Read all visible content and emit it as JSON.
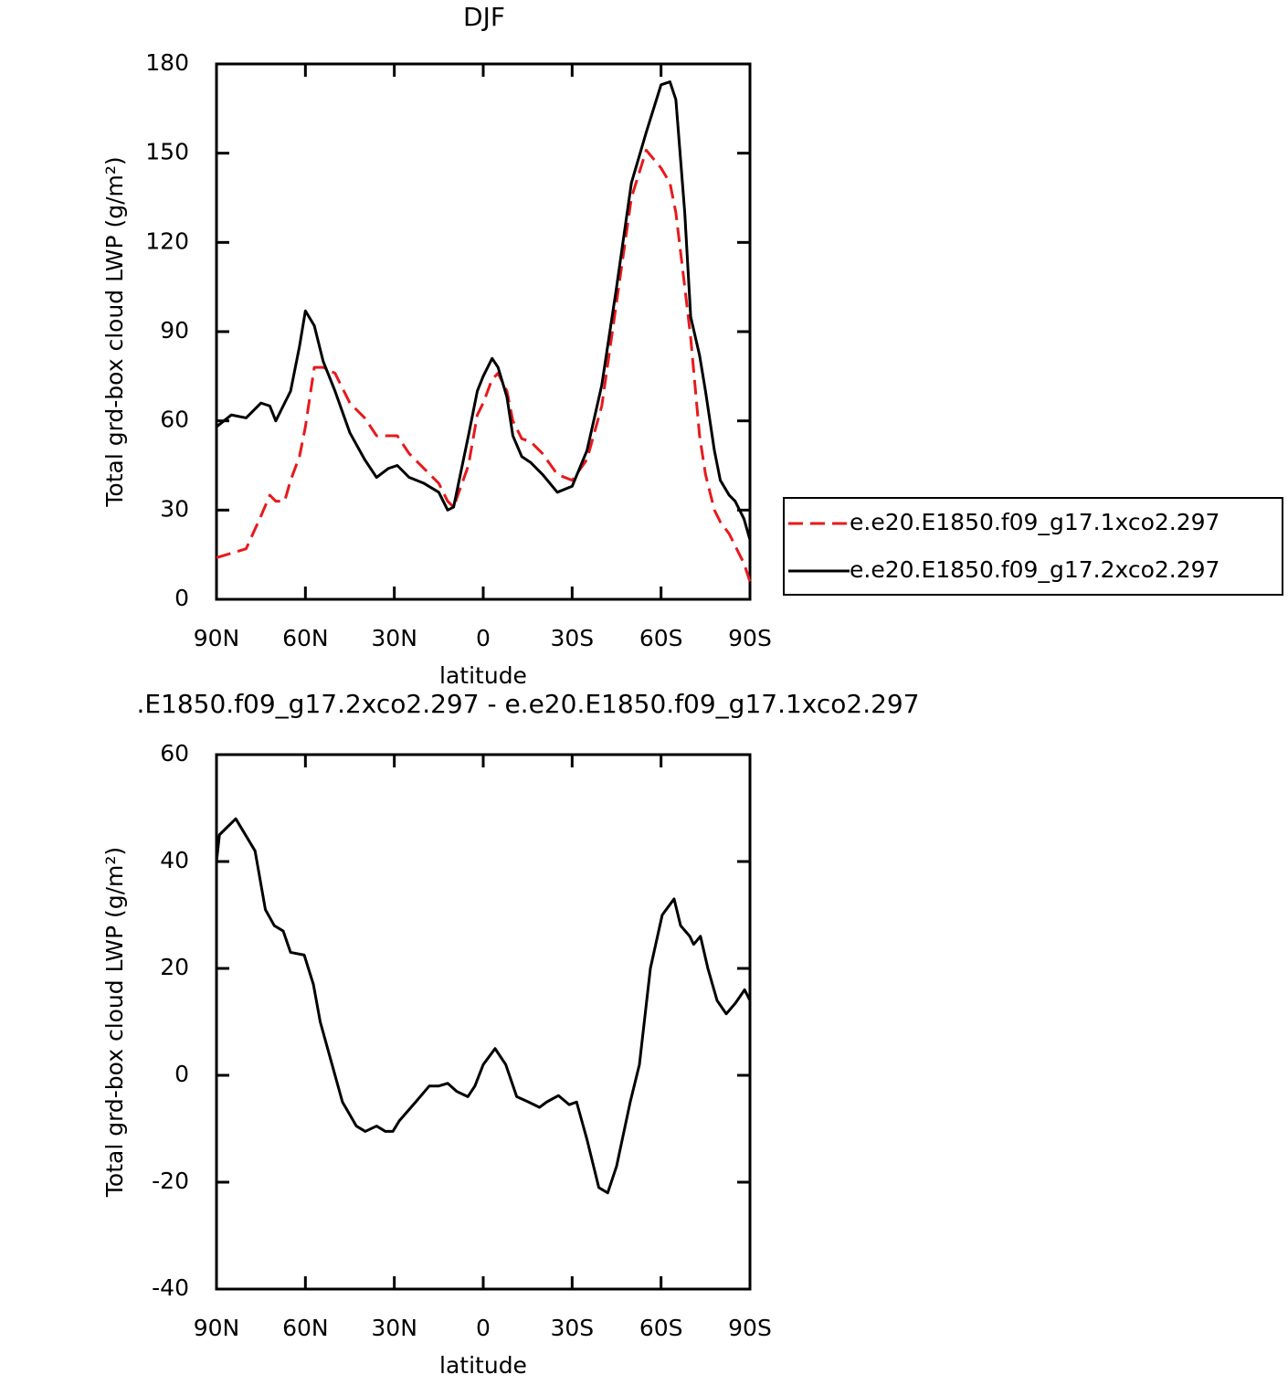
{
  "chart_data": [
    {
      "type": "line",
      "title": "DJF",
      "xlabel": "latitude",
      "ylabel": "Total grd-box cloud LWP (g/m²)",
      "x": [
        90,
        85,
        80,
        75,
        72,
        70,
        67,
        65,
        62,
        60,
        57,
        54,
        50,
        45,
        40,
        36,
        32,
        29,
        25,
        20,
        15,
        12,
        10,
        5,
        2,
        0,
        -3,
        -5,
        -8,
        -10,
        -13,
        -16,
        -20,
        -25,
        -30,
        -35,
        -40,
        -45,
        -50,
        -55,
        -60,
        -63,
        -65,
        -68,
        -70,
        -73,
        -75,
        -78,
        -80,
        -83,
        -85,
        -88,
        -90
      ],
      "series": [
        {
          "name": "e.e20.E1850.f09_g17.1xco2.297",
          "color": "#e8191c",
          "dash": true,
          "values": [
            14,
            15.5,
            17,
            28,
            35,
            33,
            33,
            40,
            48,
            58,
            78,
            78,
            76,
            66,
            61,
            55,
            55,
            55,
            49,
            44,
            39,
            33,
            31,
            45,
            62,
            66,
            74,
            76,
            70,
            60,
            54,
            53,
            49,
            42,
            40,
            47,
            65,
            100,
            135,
            151,
            145,
            140,
            130,
            105,
            88,
            55,
            42,
            30,
            26,
            22,
            18,
            12,
            6
          ]
        },
        {
          "name": "e.e20.E1850.f09_g17.2xco2.297",
          "color": "#000000",
          "dash": false,
          "values": [
            58,
            62,
            61,
            66,
            65,
            60,
            66,
            70,
            85,
            97,
            92,
            80,
            70,
            56,
            47,
            41,
            44,
            45,
            41,
            39,
            36,
            30,
            31,
            55,
            70,
            75,
            81,
            78,
            68,
            55,
            48,
            46,
            42,
            36,
            38,
            50,
            72,
            105,
            140,
            157,
            173,
            174,
            168,
            130,
            95,
            82,
            70,
            50,
            40,
            35,
            33,
            27,
            20
          ]
        }
      ],
      "xlim": [
        90,
        -90
      ],
      "xticks": [
        {
          "value": 90,
          "label": "90N"
        },
        {
          "value": 60,
          "label": "60N"
        },
        {
          "value": 30,
          "label": "30N"
        },
        0,
        {
          "value": -30,
          "label": "30S"
        },
        {
          "value": -60,
          "label": "60S"
        },
        {
          "value": -90,
          "label": "90S"
        }
      ],
      "ylim": [
        0,
        180
      ],
      "yticks": [
        0,
        30,
        60,
        90,
        120,
        150,
        180
      ],
      "legend": "right"
    },
    {
      "type": "line",
      "title": ".E1850.f09_g17.2xco2.297 - e.e20.E1850.f09_g17.1xco2.297",
      "xlabel": "latitude",
      "ylabel": "Total grd-box cloud LWP (g/m²)",
      "x": [
        90,
        89,
        83.5,
        77,
        73.5,
        70.5,
        67.5,
        65,
        60.4,
        57.3,
        55,
        51.5,
        47.5,
        42.8,
        39.8,
        36,
        33,
        30.5,
        28.3,
        22.8,
        18.2,
        15,
        12,
        9,
        5.2,
        2.8,
        0,
        -4,
        -7.6,
        -11.3,
        -15.3,
        -19,
        -21.4,
        -25.4,
        -29,
        -31.5,
        -35,
        -39,
        -42,
        -45,
        -49.6,
        -52.7,
        -56.4,
        -60.4,
        -64.4,
        -66.6,
        -69.7,
        -71,
        -73.3,
        -75.8,
        -78.9,
        -82,
        -85.1,
        -88.2,
        -90
      ],
      "series": [
        {
          "color": "#000000",
          "dash": false,
          "values": [
            40,
            45,
            48,
            42,
            31,
            28,
            27,
            23,
            22.5,
            17,
            10,
            3,
            -5,
            -9.5,
            -10.5,
            -9.5,
            -10.5,
            -10.5,
            -8.5,
            -5,
            -2,
            -2,
            -1.5,
            -3,
            -4,
            -2,
            2,
            5,
            2,
            -4,
            -5,
            -6,
            -5,
            -3.8,
            -5.5,
            -5,
            -12,
            -21,
            -22,
            -17,
            -5,
            2,
            20,
            30,
            33,
            28,
            26,
            24.5,
            26,
            20,
            14,
            11.5,
            13.5,
            16,
            14
          ]
        }
      ],
      "xlim": [
        90,
        -90
      ],
      "xticks": [
        {
          "value": 90,
          "label": "90N"
        },
        {
          "value": 60,
          "label": "60N"
        },
        {
          "value": 30,
          "label": "30N"
        },
        0,
        {
          "value": -30,
          "label": "30S"
        },
        {
          "value": -60,
          "label": "60S"
        },
        {
          "value": -90,
          "label": "90S"
        }
      ],
      "ylim": [
        -40,
        60
      ],
      "yticks": [
        -40,
        -20,
        0,
        20,
        40,
        60
      ]
    }
  ]
}
